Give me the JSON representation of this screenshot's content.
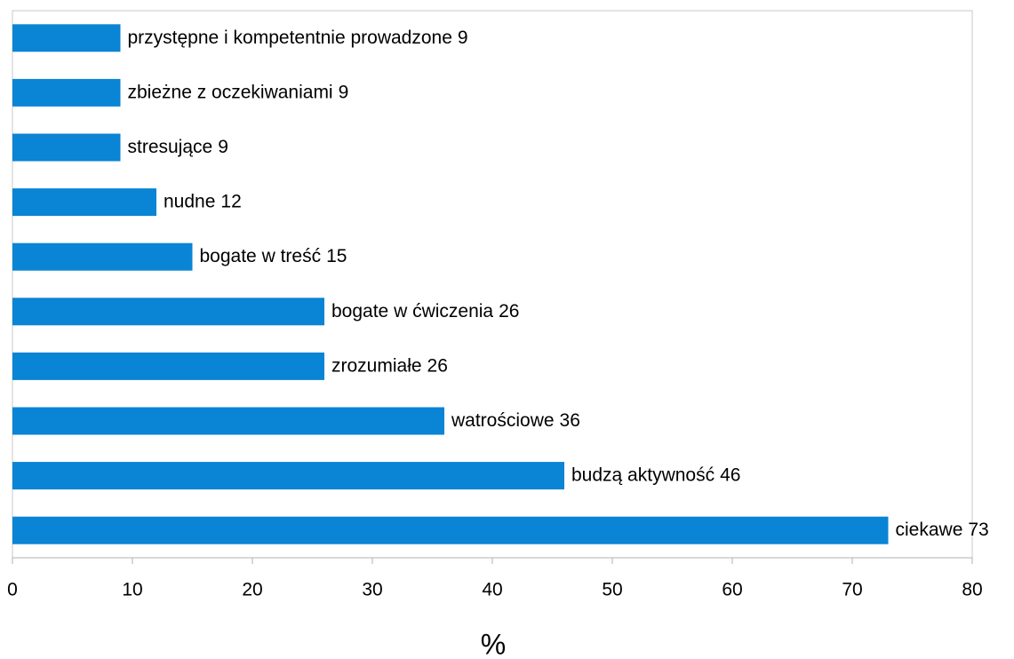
{
  "chart_data": {
    "type": "barh",
    "x_label": "%",
    "categories": [
      "przystępne i kompetentnie prowadzone",
      "zbieżne z oczekiwaniami",
      "stresujące",
      "nudne",
      "bogate w treść",
      "bogate w ćwiczenia",
      "zrozumiałe",
      "watrościowe",
      "budzą aktywność",
      "ciekawe"
    ],
    "values": [
      9,
      9,
      9,
      12,
      15,
      26,
      26,
      36,
      46,
      73
    ],
    "color": "#0a84d4",
    "xlim": [
      0,
      80
    ],
    "xticks": [
      0,
      10,
      20,
      30,
      40,
      50,
      60,
      70,
      80
    ],
    "grid": false
  }
}
